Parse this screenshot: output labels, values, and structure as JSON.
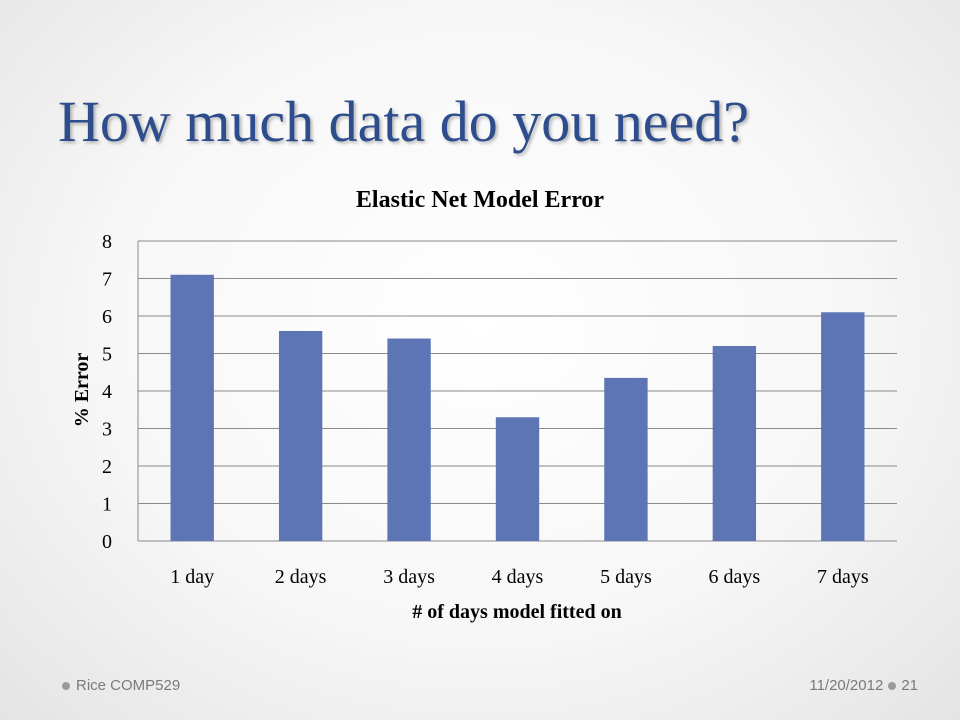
{
  "slide": {
    "title": "How much data do you need?",
    "footer_left": "Rice COMP529",
    "footer_date": "11/20/2012",
    "page_number": "21"
  },
  "colors": {
    "bar": "#5e75b5",
    "title": "#2e4d8c",
    "grid": "#8a8a8a"
  },
  "chart_data": {
    "type": "bar",
    "title": "Elastic Net Model Error",
    "xlabel": "# of days model fitted on",
    "ylabel": "% Error",
    "categories": [
      "1 day",
      "2 days",
      "3 days",
      "4 days",
      "5 days",
      "6 days",
      "7 days"
    ],
    "values": [
      7.1,
      5.6,
      5.4,
      3.3,
      4.35,
      5.2,
      6.1
    ],
    "ylim": [
      0,
      8
    ],
    "yticks": [
      "0",
      "1",
      "2",
      "3",
      "4",
      "5",
      "6",
      "7",
      "8"
    ],
    "grid": true,
    "legend": "none"
  }
}
